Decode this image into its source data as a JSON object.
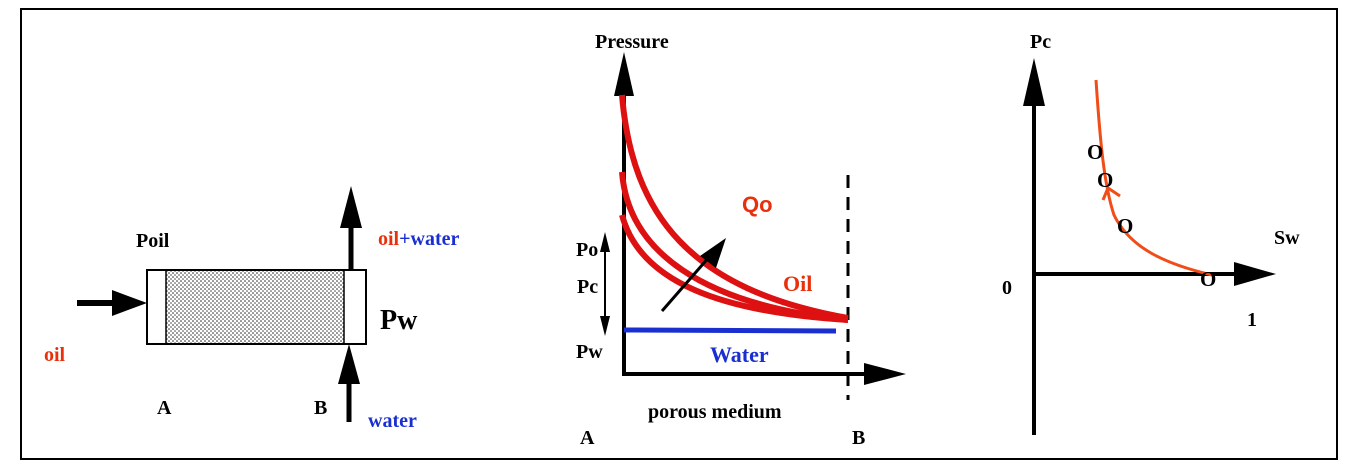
{
  "colors": {
    "stroke": "#000000",
    "oil": "#e8300c",
    "oil_curve": "#dd1111",
    "water": "#1a2fd0",
    "pc_curve": "#f04d18"
  },
  "panel1": {
    "label_poil": "Poil",
    "label_outlet_oil": "oil",
    "label_outlet_plus": "+",
    "label_outlet_water": "water",
    "label_pw": "Pw",
    "label_oil_in": "oil",
    "label_a": "A",
    "label_b": "B",
    "label_water_in": "water"
  },
  "panel2": {
    "ylabel": "Pressure",
    "xlabel": "porous medium",
    "label_a": "A",
    "label_b": "B",
    "label_po": "Po",
    "label_pc": "Pc",
    "label_pw": "Pw",
    "label_qo": "Qo",
    "label_oil": "Oil",
    "label_water": "Water"
  },
  "panel3": {
    "ylabel": "Pc",
    "xlabel": "Sw",
    "label_zero": "0",
    "label_one": "1",
    "marker": "O"
  }
}
